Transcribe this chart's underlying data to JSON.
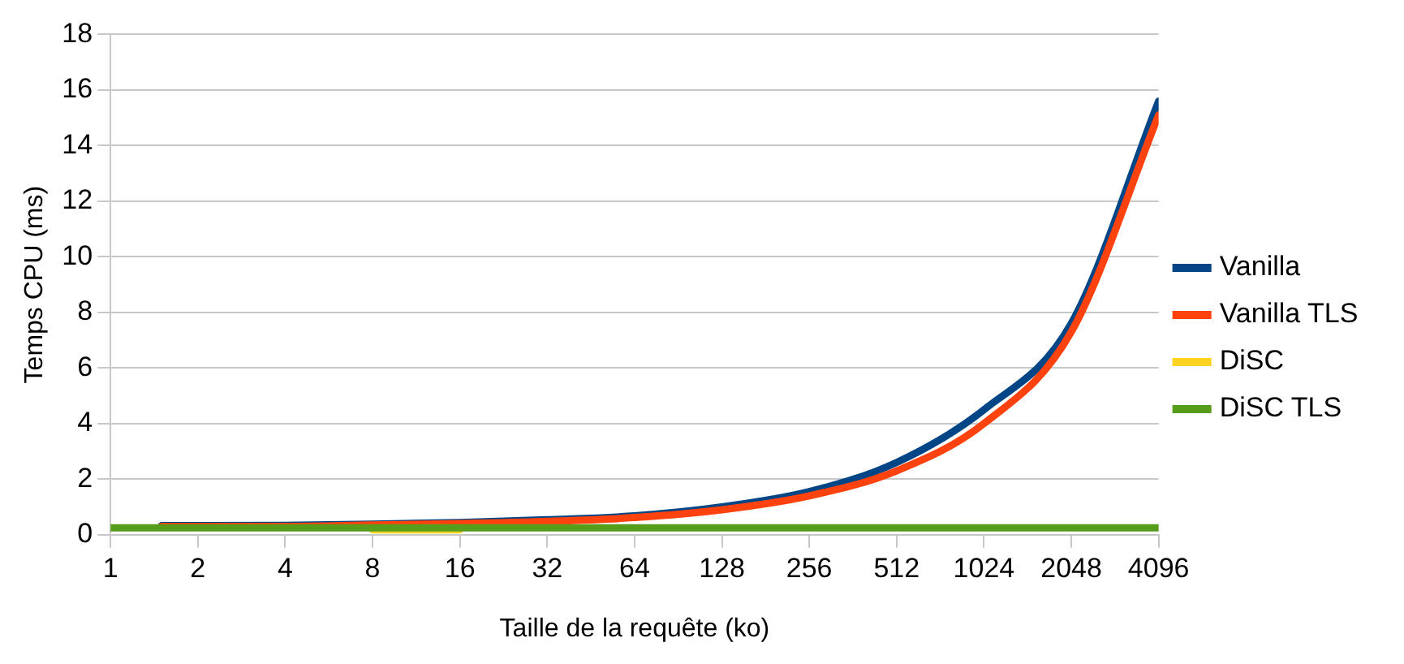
{
  "chart_data": {
    "type": "line",
    "xlabel": "Taille de la requête (ko)",
    "ylabel": "Temps CPU (ms)",
    "log": "x",
    "xlim": [
      1,
      4096
    ],
    "xticks": [
      1,
      2,
      4,
      8,
      16,
      32,
      64,
      128,
      256,
      512,
      1024,
      2048,
      4096
    ],
    "ylim": [
      0,
      18
    ],
    "yticks": [
      0,
      2,
      4,
      6,
      8,
      10,
      12,
      14,
      16,
      18
    ],
    "grid": "y",
    "legend": "right",
    "marker": "none",
    "line_style": "solid",
    "series": [
      {
        "name": "Vanilla",
        "color": "#004586",
        "x": [
          1.5,
          2,
          4,
          8,
          16,
          32,
          64,
          128,
          256,
          512,
          1024,
          2048,
          4096
        ],
        "values": [
          0.33,
          0.33,
          0.34,
          0.38,
          0.44,
          0.54,
          0.68,
          1.0,
          1.55,
          2.6,
          4.5,
          7.6,
          15.6
        ]
      },
      {
        "name": "Vanilla TLS",
        "color": "#ff420e",
        "x": [
          1.5,
          2,
          4,
          8,
          16,
          32,
          64,
          128,
          256,
          512,
          1024,
          2048,
          4096
        ],
        "values": [
          0.3,
          0.3,
          0.3,
          0.35,
          0.4,
          0.48,
          0.62,
          0.9,
          1.4,
          2.3,
          4.0,
          7.3,
          15.1
        ]
      },
      {
        "name": "DiSC",
        "color": "#ffd320",
        "x": [
          8,
          16
        ],
        "values": [
          0.18,
          0.18
        ]
      },
      {
        "name": "DiSC TLS",
        "color": "#579d1c",
        "x": [
          1,
          2,
          4,
          8,
          16,
          32,
          64,
          128,
          256,
          512,
          1024,
          2048,
          4096
        ],
        "values": [
          0.25,
          0.25,
          0.25,
          0.25,
          0.25,
          0.25,
          0.25,
          0.25,
          0.25,
          0.25,
          0.25,
          0.25,
          0.25
        ]
      }
    ]
  }
}
